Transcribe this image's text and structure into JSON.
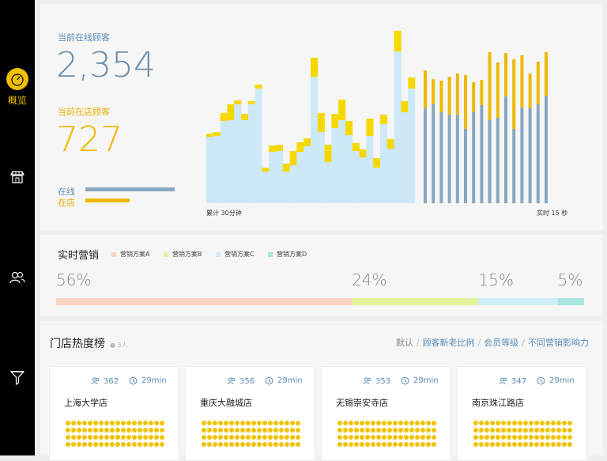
{
  "nav": {
    "items": [
      {
        "label": "概览",
        "icon": "gauge-icon",
        "active": true
      },
      {
        "label": "",
        "icon": "store-icon",
        "active": false
      },
      {
        "label": "",
        "icon": "users-icon",
        "active": false
      },
      {
        "label": "",
        "icon": "funnel-icon",
        "active": false
      }
    ]
  },
  "overview": {
    "online_label": "当前在线顾客",
    "online_value": "2,354",
    "store_label": "当前在店顾客",
    "store_value": "727",
    "legend_online": "在线",
    "legend_store": "在店",
    "online_color": "#87a7c2",
    "store_color": "#f0b800"
  },
  "chart_data": {
    "type": "bar",
    "title": "",
    "left_axis_label": "累计 30分钟",
    "right_axis_label": "实时 15 秒",
    "series": [
      {
        "name": "在线",
        "color": "#cde9f7"
      },
      {
        "name": "在店",
        "color": "#f5d800"
      }
    ],
    "cumulative": [
      {
        "online": 84,
        "store": 4
      },
      {
        "online": 85,
        "store": 5
      },
      {
        "online": 104,
        "store": 10
      },
      {
        "online": 105,
        "store": 20
      },
      {
        "online": 125,
        "store": 5
      },
      {
        "online": 105,
        "store": 8
      },
      {
        "online": 125,
        "store": 4
      },
      {
        "online": 145,
        "store": 5
      },
      {
        "online": 40,
        "store": 5
      },
      {
        "online": 65,
        "store": 8
      },
      {
        "online": 66,
        "store": 8
      },
      {
        "online": 40,
        "store": 10
      },
      {
        "online": 48,
        "store": 18
      },
      {
        "online": 65,
        "store": 12
      },
      {
        "online": 72,
        "store": 10
      },
      {
        "online": 160,
        "store": 24
      },
      {
        "online": 90,
        "store": 24
      },
      {
        "online": 52,
        "store": 22
      },
      {
        "online": 95,
        "store": 18
      },
      {
        "online": 105,
        "store": 26
      },
      {
        "online": 86,
        "store": 18
      },
      {
        "online": 66,
        "store": 10
      },
      {
        "online": 58,
        "store": 10
      },
      {
        "online": 85,
        "store": 22
      },
      {
        "online": 45,
        "store": 12
      },
      {
        "online": 100,
        "store": 12
      },
      {
        "online": 69,
        "store": 12
      },
      {
        "online": 192,
        "store": 26
      },
      {
        "online": 115,
        "store": 14
      },
      {
        "online": 145,
        "store": 14
      }
    ],
    "realtime": [
      {
        "online": 120,
        "store": 48
      },
      {
        "online": 125,
        "store": 32
      },
      {
        "online": 115,
        "store": 40
      },
      {
        "online": 112,
        "store": 48
      },
      {
        "online": 112,
        "store": 52
      },
      {
        "online": 94,
        "store": 68
      },
      {
        "online": 115,
        "store": 38
      },
      {
        "online": 124,
        "store": 32
      },
      {
        "online": 105,
        "store": 86
      },
      {
        "online": 108,
        "store": 70
      },
      {
        "online": 135,
        "store": 55
      },
      {
        "online": 94,
        "store": 88
      },
      {
        "online": 121,
        "store": 66
      },
      {
        "online": 120,
        "store": 44
      },
      {
        "online": 125,
        "store": 54
      },
      {
        "online": 136,
        "store": 55
      }
    ]
  },
  "marketing": {
    "title": "实时营销",
    "legend": [
      {
        "name": "营销方案A",
        "color": "#fbd3c2"
      },
      {
        "name": "营销方案B",
        "color": "#e2f39a"
      },
      {
        "name": "营销方案C",
        "color": "#cdeef7"
      },
      {
        "name": "营销方案D",
        "color": "#a9e6dc"
      }
    ],
    "segments": [
      {
        "label": "56%",
        "value": 56
      },
      {
        "label": "24%",
        "value": 24
      },
      {
        "label": "15%",
        "value": 15
      },
      {
        "label": "5%",
        "value": 5
      }
    ]
  },
  "stores": {
    "title": "门店热度榜",
    "count_label": "● 5人",
    "sort_options": [
      "默认",
      "顾客新老比例",
      "会员等级",
      "不同营销影响力"
    ],
    "cards": [
      {
        "name": "上海大学店",
        "visitors": "362",
        "duration": "29min"
      },
      {
        "name": "重庆大融城店",
        "visitors": "356",
        "duration": "29min"
      },
      {
        "name": "无锡崇安寺店",
        "visitors": "353",
        "duration": "29min"
      },
      {
        "name": "南京珠江路店",
        "visitors": "347",
        "duration": "29min"
      }
    ]
  }
}
